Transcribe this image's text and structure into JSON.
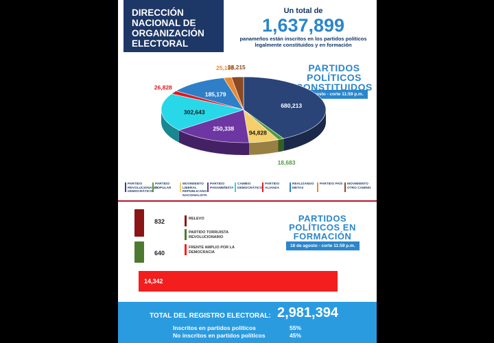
{
  "header": {
    "title_lines": [
      "DIRECCIÓN",
      "NACIONAL DE",
      "ORGANIZACIÓN",
      "ELECTORAL"
    ],
    "total_lead": "Un total de",
    "total_value": "1,637,899",
    "total_desc_1": "panameños están inscritos en los partidos políticos",
    "total_desc_2": "legalmente constituidos y en formación"
  },
  "constituidos": {
    "title_lines": [
      "PARTIDOS",
      "POLÍTICOS",
      "CONSTITUIDOS"
    ],
    "date": "18 de agosto - corte 11:59 p.m."
  },
  "formacion": {
    "title_lines": [
      "PARTIDOS",
      "POLÍTICOS EN",
      "FORMACIÓN"
    ],
    "date": "18 de agosto - corte 11:59 p.m."
  },
  "chart_data": [
    {
      "type": "pie",
      "slices": [
        {
          "name": "PARTIDO REVOLUCIONARIO DEMOCRÁTICO",
          "value": 680213,
          "label": "680,213",
          "color": "#2b4478"
        },
        {
          "name": "PARTIDO POPULAR",
          "value": 18683,
          "label": "18,683",
          "color": "#4f9a3c"
        },
        {
          "name": "MOVIMIENTO LIBERAL REPUBLICANO NACIONALISTA",
          "value": 94828,
          "label": "94,828",
          "color": "#f5cf6a"
        },
        {
          "name": "PARTIDO PANAMEÑISTA",
          "value": 250338,
          "label": "250,338",
          "color": "#6d36a3"
        },
        {
          "name": "CAMBIO DEMOCRÁTICO",
          "value": 302643,
          "label": "302,643",
          "color": "#28d8e8"
        },
        {
          "name": "PARTIDO ALIANZA",
          "value": 26828,
          "label": "26,828",
          "color": "#e0181e"
        },
        {
          "name": "REALIZANDO METAS",
          "value": 185179,
          "label": "185,179",
          "color": "#2f7fc8"
        },
        {
          "name": "PARTIDO PAÍS",
          "value": 25158,
          "label": "25,158",
          "color": "#e98833"
        },
        {
          "name": "MOVIMIENTO OTRO CAMINO",
          "value": 38215,
          "label": "38,215",
          "color": "#8a4a24"
        }
      ]
    },
    {
      "type": "bar",
      "categories": [
        "RELEVO",
        "PARTIDO TORRIJISTA REVOLUCIONARIO",
        "FRENTE AMPLIO POR LA DEMOCRACIA"
      ],
      "values": [
        832,
        640,
        14342
      ],
      "labels": [
        "832",
        "640",
        "14,342"
      ],
      "colors": [
        "#8b1414",
        "#4d7a2e",
        "#f41e1e"
      ]
    }
  ],
  "legend_colors": {
    "relevo": "#8b1414",
    "torrijista": "#4d7a2e",
    "frente_amplio": "#f41e1e"
  },
  "footer": {
    "total_label": "TOTAL DEL REGISTRO ELECTORAL:",
    "total_value": "2,981,394",
    "rows": [
      {
        "label": "Inscritos en partidos políticos",
        "pct": "55%"
      },
      {
        "label": "No inscritos en partidos políticos",
        "pct": "45%"
      }
    ]
  }
}
